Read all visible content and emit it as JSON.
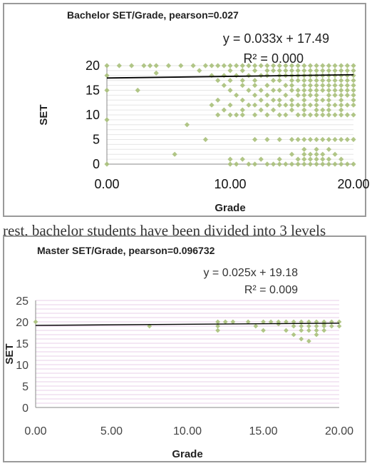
{
  "page_text": "rest, bachelor students have been divided into 3 levels",
  "chart_data": [
    {
      "type": "scatter",
      "title": "Bachelor SET/Grade, pearson=0.027",
      "xlabel": "Grade",
      "ylabel": "SET",
      "xlim": [
        0,
        20
      ],
      "ylim": [
        0,
        20
      ],
      "x_ticks": [
        "0.00",
        "10.00",
        "20.00"
      ],
      "y_ticks": [
        "0",
        "5",
        "10",
        "15",
        "20"
      ],
      "trendline": {
        "slope": 0.033,
        "intercept": 17.49,
        "equation": "y = 0.033x + 17.49",
        "r2": "R² = 0.000"
      },
      "marker_color": "#a8c07a",
      "line_color": "#000000",
      "gridlines": "horizontal",
      "points": [
        [
          0,
          20
        ],
        [
          0,
          18
        ],
        [
          0,
          15
        ],
        [
          0,
          9
        ],
        [
          0,
          0
        ],
        [
          1,
          20
        ],
        [
          2,
          20
        ],
        [
          2.5,
          15
        ],
        [
          3,
          20
        ],
        [
          3.5,
          20
        ],
        [
          4,
          20
        ],
        [
          4,
          18.5
        ],
        [
          5,
          20
        ],
        [
          5.5,
          2
        ],
        [
          6,
          20
        ],
        [
          6.5,
          8
        ],
        [
          7,
          20
        ],
        [
          7.5,
          19
        ],
        [
          8,
          20
        ],
        [
          8,
          5
        ],
        [
          8.5,
          20
        ],
        [
          8.5,
          18
        ],
        [
          8.5,
          12
        ],
        [
          9,
          20
        ],
        [
          9,
          17
        ],
        [
          9,
          13
        ],
        [
          9,
          10
        ],
        [
          9.5,
          20
        ],
        [
          9.5,
          18
        ],
        [
          9.5,
          16
        ],
        [
          9.5,
          11
        ],
        [
          10,
          20
        ],
        [
          10,
          19
        ],
        [
          10,
          17
        ],
        [
          10,
          15
        ],
        [
          10,
          12
        ],
        [
          10,
          10
        ],
        [
          10,
          1
        ],
        [
          10,
          0
        ],
        [
          10.5,
          20
        ],
        [
          10.5,
          18
        ],
        [
          10.5,
          14
        ],
        [
          10.5,
          10
        ],
        [
          10.5,
          0
        ],
        [
          11,
          20
        ],
        [
          11,
          19
        ],
        [
          11,
          17
        ],
        [
          11,
          16
        ],
        [
          11,
          13
        ],
        [
          11,
          11
        ],
        [
          11,
          10
        ],
        [
          11,
          1
        ],
        [
          11.5,
          20
        ],
        [
          11.5,
          18
        ],
        [
          11.5,
          15
        ],
        [
          11.5,
          12
        ],
        [
          11.5,
          0
        ],
        [
          12,
          20
        ],
        [
          12,
          19
        ],
        [
          12,
          17
        ],
        [
          12,
          16
        ],
        [
          12,
          14
        ],
        [
          12,
          12
        ],
        [
          12,
          10
        ],
        [
          12,
          5
        ],
        [
          12,
          0
        ],
        [
          12.5,
          20
        ],
        [
          12.5,
          18
        ],
        [
          12.5,
          15
        ],
        [
          12.5,
          13
        ],
        [
          12.5,
          11
        ],
        [
          12.5,
          1
        ],
        [
          13,
          20
        ],
        [
          13,
          19
        ],
        [
          13,
          18
        ],
        [
          13,
          16
        ],
        [
          13,
          14
        ],
        [
          13,
          12
        ],
        [
          13,
          10
        ],
        [
          13,
          5
        ],
        [
          13,
          0
        ],
        [
          13.5,
          20
        ],
        [
          13.5,
          19
        ],
        [
          13.5,
          17
        ],
        [
          13.5,
          15
        ],
        [
          13.5,
          13
        ],
        [
          13.5,
          11
        ],
        [
          13.5,
          0
        ],
        [
          14,
          20
        ],
        [
          14,
          19
        ],
        [
          14,
          18
        ],
        [
          14,
          17
        ],
        [
          14,
          15
        ],
        [
          14,
          13
        ],
        [
          14,
          12
        ],
        [
          14,
          10
        ],
        [
          14,
          5
        ],
        [
          14,
          1
        ],
        [
          14,
          0
        ],
        [
          14.5,
          20
        ],
        [
          14.5,
          19
        ],
        [
          14.5,
          18
        ],
        [
          14.5,
          16
        ],
        [
          14.5,
          14
        ],
        [
          14.5,
          12
        ],
        [
          14.5,
          10
        ],
        [
          14.5,
          0
        ],
        [
          15,
          20
        ],
        [
          15,
          19
        ],
        [
          15,
          18
        ],
        [
          15,
          17
        ],
        [
          15,
          16
        ],
        [
          15,
          15
        ],
        [
          15,
          13
        ],
        [
          15,
          12
        ],
        [
          15,
          11
        ],
        [
          15,
          5
        ],
        [
          15,
          2
        ],
        [
          15,
          0
        ],
        [
          15.5,
          20
        ],
        [
          15.5,
          19
        ],
        [
          15.5,
          18
        ],
        [
          15.5,
          17
        ],
        [
          15.5,
          15
        ],
        [
          15.5,
          14
        ],
        [
          15.5,
          12
        ],
        [
          15.5,
          10
        ],
        [
          15.5,
          5
        ],
        [
          15.5,
          1
        ],
        [
          15.5,
          0
        ],
        [
          16,
          20
        ],
        [
          16,
          19
        ],
        [
          16,
          18
        ],
        [
          16,
          17
        ],
        [
          16,
          16
        ],
        [
          16,
          15
        ],
        [
          16,
          14
        ],
        [
          16,
          13
        ],
        [
          16,
          12
        ],
        [
          16,
          11
        ],
        [
          16,
          10
        ],
        [
          16,
          5
        ],
        [
          16,
          3
        ],
        [
          16,
          2
        ],
        [
          16,
          1
        ],
        [
          16,
          0
        ],
        [
          16.5,
          20
        ],
        [
          16.5,
          19
        ],
        [
          16.5,
          18
        ],
        [
          16.5,
          17
        ],
        [
          16.5,
          16
        ],
        [
          16.5,
          15
        ],
        [
          16.5,
          14
        ],
        [
          16.5,
          12
        ],
        [
          16.5,
          10
        ],
        [
          16.5,
          5
        ],
        [
          16.5,
          2
        ],
        [
          16.5,
          1
        ],
        [
          16.5,
          0
        ],
        [
          17,
          20
        ],
        [
          17,
          19
        ],
        [
          17,
          18
        ],
        [
          17,
          17
        ],
        [
          17,
          16
        ],
        [
          17,
          15
        ],
        [
          17,
          14
        ],
        [
          17,
          13
        ],
        [
          17,
          12
        ],
        [
          17,
          11
        ],
        [
          17,
          10
        ],
        [
          17,
          5
        ],
        [
          17,
          3
        ],
        [
          17,
          2
        ],
        [
          17,
          1
        ],
        [
          17,
          0
        ],
        [
          17.5,
          20
        ],
        [
          17.5,
          19
        ],
        [
          17.5,
          18
        ],
        [
          17.5,
          17
        ],
        [
          17.5,
          16
        ],
        [
          17.5,
          15
        ],
        [
          17.5,
          13
        ],
        [
          17.5,
          11
        ],
        [
          17.5,
          10
        ],
        [
          17.5,
          5
        ],
        [
          17.5,
          2
        ],
        [
          17.5,
          1
        ],
        [
          17.5,
          0
        ],
        [
          18,
          20
        ],
        [
          18,
          19
        ],
        [
          18,
          18
        ],
        [
          18,
          17
        ],
        [
          18,
          16
        ],
        [
          18,
          15
        ],
        [
          18,
          14
        ],
        [
          18,
          13
        ],
        [
          18,
          12
        ],
        [
          18,
          11
        ],
        [
          18,
          10
        ],
        [
          18,
          5
        ],
        [
          18,
          3
        ],
        [
          18,
          1
        ],
        [
          18,
          0
        ],
        [
          18.5,
          20
        ],
        [
          18.5,
          19
        ],
        [
          18.5,
          18
        ],
        [
          18.5,
          17
        ],
        [
          18.5,
          16
        ],
        [
          18.5,
          15
        ],
        [
          18.5,
          14
        ],
        [
          18.5,
          12
        ],
        [
          18.5,
          10
        ],
        [
          18.5,
          5
        ],
        [
          18.5,
          2
        ],
        [
          18.5,
          0
        ],
        [
          19,
          20
        ],
        [
          19,
          19
        ],
        [
          19,
          18
        ],
        [
          19,
          17
        ],
        [
          19,
          16
        ],
        [
          19,
          15
        ],
        [
          19,
          14
        ],
        [
          19,
          13
        ],
        [
          19,
          12
        ],
        [
          19,
          11
        ],
        [
          19,
          10
        ],
        [
          19,
          5
        ],
        [
          19,
          1
        ],
        [
          19,
          0
        ],
        [
          19.5,
          20
        ],
        [
          19.5,
          19
        ],
        [
          19.5,
          18
        ],
        [
          19.5,
          17
        ],
        [
          19.5,
          16
        ],
        [
          19.5,
          15
        ],
        [
          19.5,
          14
        ],
        [
          19.5,
          12
        ],
        [
          19.5,
          10
        ],
        [
          19.5,
          5
        ],
        [
          19.5,
          0
        ],
        [
          20,
          20
        ],
        [
          20,
          19
        ],
        [
          20,
          18
        ],
        [
          20,
          17
        ],
        [
          20,
          16
        ],
        [
          20,
          15
        ],
        [
          20,
          14
        ],
        [
          20,
          13
        ],
        [
          20,
          12
        ],
        [
          20,
          10
        ],
        [
          20,
          5
        ],
        [
          20,
          0
        ]
      ]
    },
    {
      "type": "scatter",
      "title": "Master SET/Grade, pearson=0.096732",
      "xlabel": "Grade",
      "ylabel": "SET",
      "xlim": [
        0,
        20
      ],
      "ylim": [
        0,
        25
      ],
      "x_ticks": [
        "0.00",
        "5.00",
        "10.00",
        "15.00",
        "20.00"
      ],
      "y_ticks": [
        "0",
        "5",
        "10",
        "15",
        "20",
        "25"
      ],
      "trendline": {
        "slope": 0.025,
        "intercept": 19.18,
        "equation": "y = 0.025x + 19.18",
        "r2": "R² = 0.009"
      },
      "marker_color": "#a8c07a",
      "line_color": "#000000",
      "gridlines": "horizontal",
      "points": [
        [
          0,
          20
        ],
        [
          7.5,
          19
        ],
        [
          12,
          20
        ],
        [
          12,
          19
        ],
        [
          12,
          18
        ],
        [
          12.5,
          20
        ],
        [
          13,
          20
        ],
        [
          14,
          20
        ],
        [
          14.5,
          19
        ],
        [
          15,
          18
        ],
        [
          15,
          20
        ],
        [
          15.5,
          20
        ],
        [
          16,
          20
        ],
        [
          16,
          19.5
        ],
        [
          16.5,
          20
        ],
        [
          16.5,
          18
        ],
        [
          17,
          20
        ],
        [
          17,
          19
        ],
        [
          17,
          17
        ],
        [
          17.5,
          20
        ],
        [
          17.5,
          19
        ],
        [
          17.5,
          18
        ],
        [
          17.5,
          16
        ],
        [
          18,
          20
        ],
        [
          18,
          19
        ],
        [
          18,
          18
        ],
        [
          18,
          15.5
        ],
        [
          18.5,
          20
        ],
        [
          18.5,
          19
        ],
        [
          18.5,
          18
        ],
        [
          18.5,
          17
        ],
        [
          19,
          20
        ],
        [
          19,
          19.5
        ],
        [
          19,
          19
        ],
        [
          19,
          18
        ],
        [
          19.5,
          20
        ],
        [
          19.5,
          19
        ],
        [
          20,
          20
        ],
        [
          20,
          19
        ]
      ]
    }
  ]
}
